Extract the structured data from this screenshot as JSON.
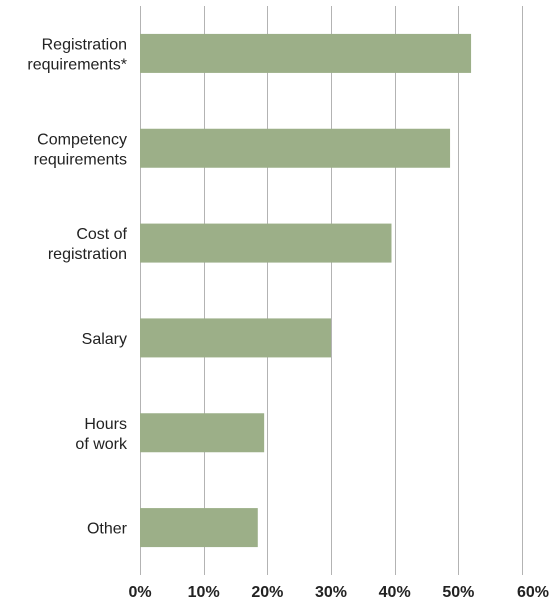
{
  "chart_data": {
    "type": "bar",
    "orientation": "horizontal",
    "categories": [
      [
        "Registration",
        "requirements*"
      ],
      [
        "Competency",
        "requirements"
      ],
      [
        "Cost of",
        "registration"
      ],
      [
        "Salary"
      ],
      [
        "Hours",
        "of work"
      ],
      [
        "Other"
      ]
    ],
    "values": [
      52,
      48.7,
      39.5,
      30,
      19.5,
      18.5
    ],
    "xlim": [
      0,
      60
    ],
    "x_ticks": [
      0,
      10,
      20,
      30,
      40,
      50,
      60
    ],
    "x_tick_labels": [
      "0%",
      "10%",
      "20%",
      "30%",
      "40%",
      "50%",
      "60%"
    ],
    "title": "",
    "xlabel": "",
    "ylabel": "",
    "grid": "vertical",
    "legend": "none",
    "bar_color": "#9caf88",
    "grid_color": "#b3b3b3"
  }
}
